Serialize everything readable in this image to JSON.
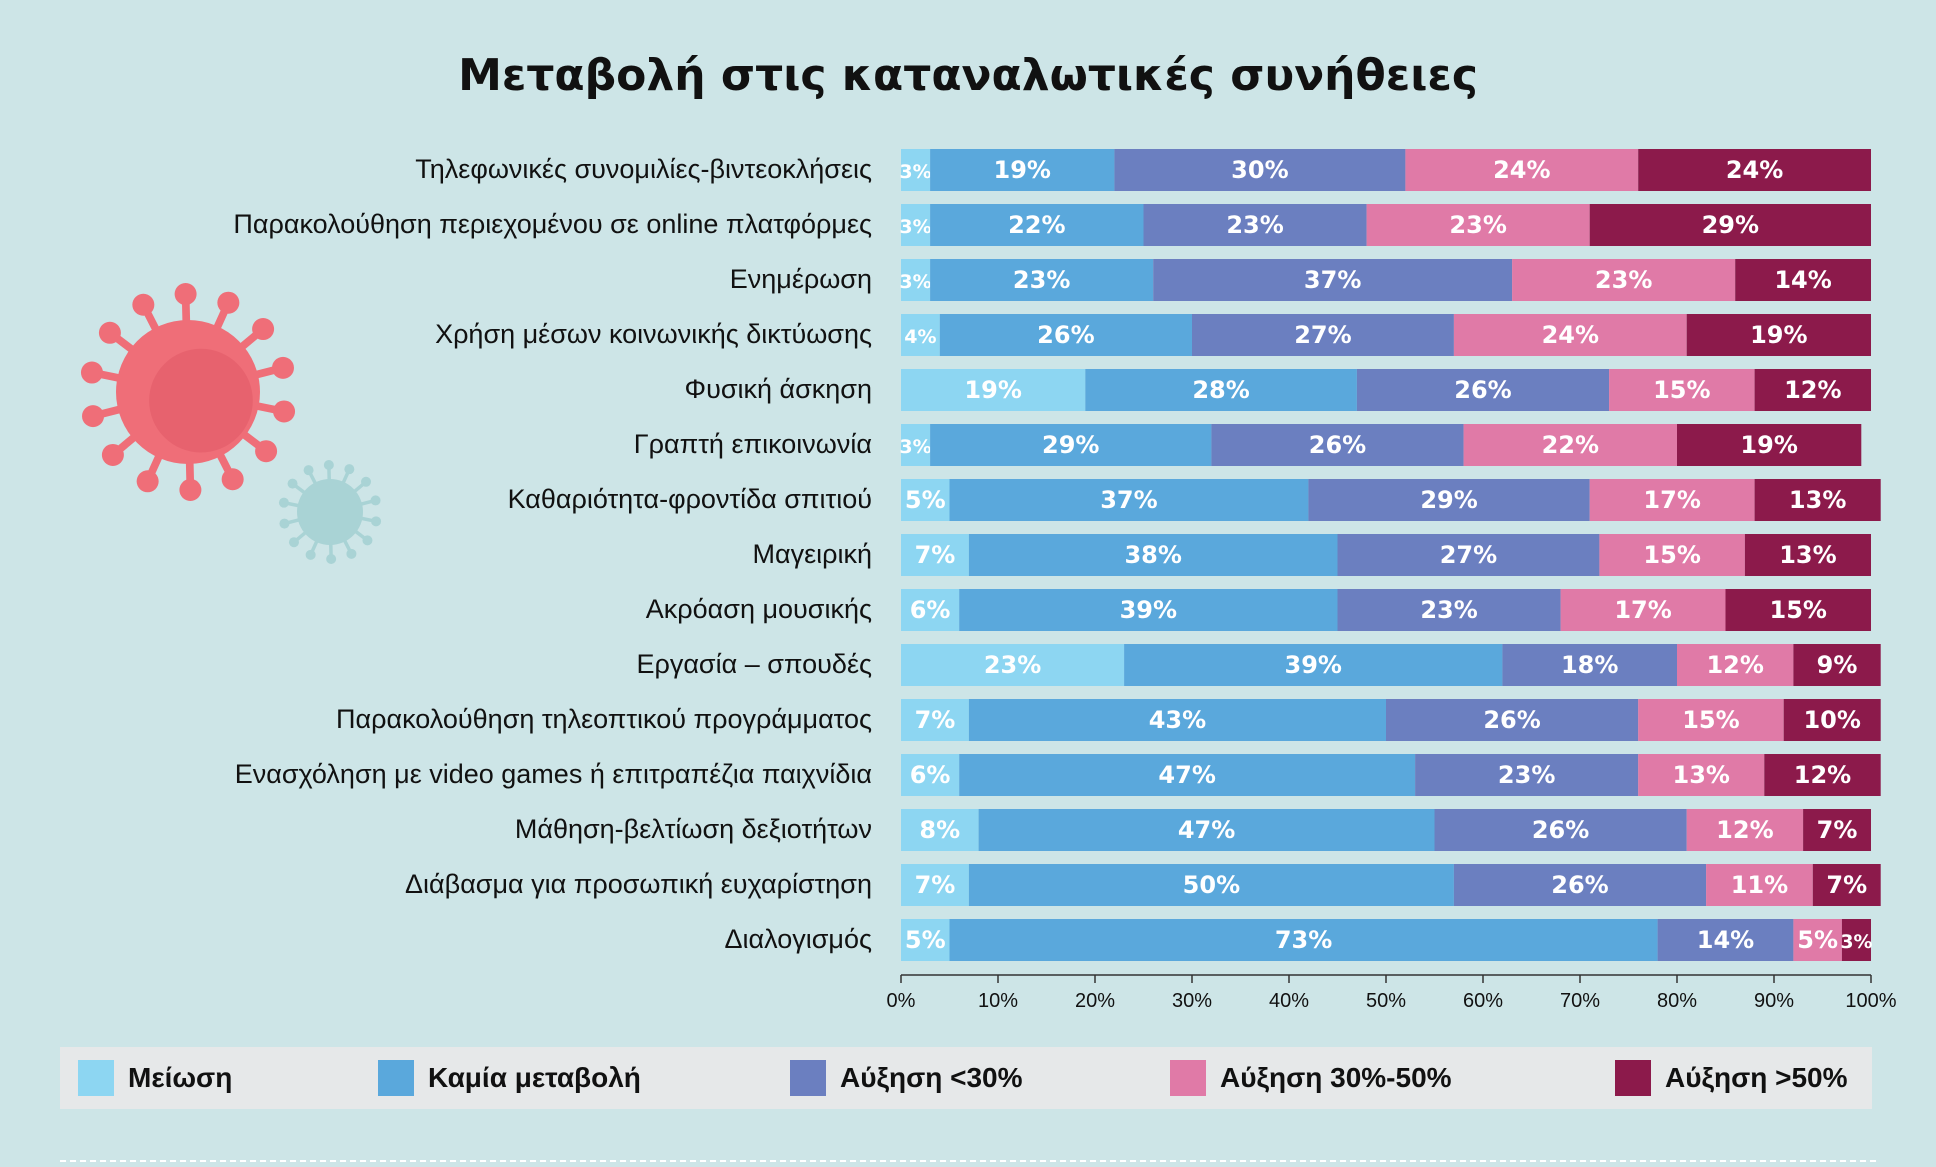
{
  "chart_data": {
    "type": "bar",
    "orientation": "horizontal",
    "stacked": true,
    "title": "Μεταβολή στις καταναλωτικές συνήθειες",
    "categories": [
      "Τηλεφωνικές συνομιλίες-βιντεοκλήσεις",
      "Παρακολούθηση περιεχομένου σε online πλατφόρμες",
      "Ενημέρωση",
      "Χρήση μέσων κοινωνικής δικτύωσης",
      "Φυσική άσκηση",
      "Γραπτή επικοινωνία",
      "Καθαριότητα-φροντίδα σπιτιού",
      "Μαγειρική",
      "Ακρόαση μουσικής",
      "Εργασία – σπουδές",
      "Παρακολούθηση τηλεοπτικού προγράμματος",
      "Ενασχόληση με video games ή επιτραπέζια παιχνίδια",
      "Μάθηση-βελτίωση δεξιοτήτων",
      "Διάβασμα για προσωπική ευχαρίστηση",
      "Διαλογισμός"
    ],
    "series": [
      {
        "name": "Μείωση",
        "color": "#8dd6f2",
        "values": [
          3,
          3,
          3,
          4,
          19,
          3,
          5,
          7,
          6,
          23,
          7,
          6,
          8,
          7,
          5
        ]
      },
      {
        "name": "Καμία μεταβολή",
        "color": "#5aa8dc",
        "values": [
          19,
          22,
          23,
          26,
          28,
          29,
          37,
          38,
          39,
          39,
          43,
          47,
          47,
          50,
          73
        ]
      },
      {
        "name": "Αύξηση <30%",
        "color": "#6b7fc0",
        "values": [
          30,
          23,
          37,
          27,
          26,
          26,
          29,
          27,
          23,
          18,
          26,
          23,
          26,
          26,
          14
        ]
      },
      {
        "name": "Αύξηση 30%-50%",
        "color": "#e07aa7",
        "values": [
          24,
          23,
          23,
          24,
          15,
          22,
          17,
          15,
          17,
          12,
          15,
          13,
          12,
          11,
          5
        ]
      },
      {
        "name": "Αύξηση >50%",
        "color": "#8c1a4b",
        "values": [
          24,
          29,
          14,
          19,
          12,
          19,
          13,
          13,
          15,
          9,
          10,
          12,
          7,
          7,
          3
        ]
      }
    ],
    "xlim": [
      0,
      100
    ],
    "xticks": [
      "0%",
      "10%",
      "20%",
      "30%",
      "40%",
      "50%",
      "60%",
      "70%",
      "80%",
      "90%",
      "100%"
    ],
    "value_suffix": "%",
    "legend_position": "bottom",
    "grid": false
  },
  "decor": {
    "large_virus_icon_color": "#ef6e78",
    "small_virus_icon_color": "#a9d3d5"
  }
}
